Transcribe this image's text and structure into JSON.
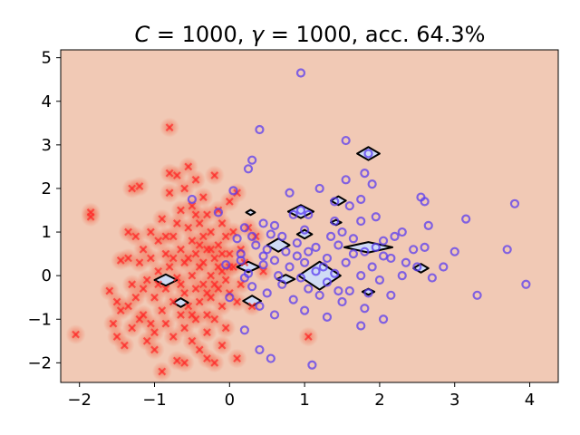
{
  "chart_data": {
    "type": "scatter",
    "title": "C = 1000, γ = 1000, acc. 64.3%",
    "title_parts": {
      "c_sym": "C",
      "c_val": " = 1000, ",
      "g_sym": "γ",
      "g_val": " = 1000, acc. 64.3%"
    },
    "xlim": [
      -2.25,
      4.38
    ],
    "ylim": [
      -2.45,
      5.18
    ],
    "xticks": [
      "−2",
      "−1",
      "0",
      "1",
      "2",
      "3",
      "4"
    ],
    "xtick_values": [
      -2,
      -1,
      0,
      1,
      2,
      3,
      4
    ],
    "yticks": [
      "−2",
      "−1",
      "0",
      "1",
      "2",
      "3",
      "4",
      "5"
    ],
    "ytick_values": [
      -2,
      -1,
      0,
      1,
      2,
      3,
      4,
      5
    ],
    "grid": false,
    "colors": {
      "background_region": "#f1c9b5",
      "red_region": "#f6a48c",
      "blue_region": "#cfdbf5",
      "cross": "#ff2a2a",
      "circle": "#5a3cf0",
      "boundary": "#000000"
    },
    "series": [
      {
        "marker": "x",
        "color": "#ff2a2a",
        "points": [
          [
            -2.05,
            -1.35
          ],
          [
            -1.85,
            1.45
          ],
          [
            -1.85,
            1.35
          ],
          [
            -1.6,
            -0.35
          ],
          [
            -1.55,
            -1.1
          ],
          [
            -1.5,
            -0.6
          ],
          [
            -1.5,
            -1.4
          ],
          [
            -1.45,
            0.35
          ],
          [
            -1.45,
            -0.8
          ],
          [
            -1.4,
            -1.6
          ],
          [
            -1.35,
            0.4
          ],
          [
            -1.35,
            1.0
          ],
          [
            -1.3,
            -0.2
          ],
          [
            -1.3,
            -1.2
          ],
          [
            -1.3,
            2.0
          ],
          [
            -1.25,
            -0.5
          ],
          [
            -1.2,
            0.3
          ],
          [
            -1.2,
            -1.0
          ],
          [
            -1.2,
            2.05
          ],
          [
            -1.15,
            0.6
          ],
          [
            -1.15,
            -0.9
          ],
          [
            -1.1,
            -0.1
          ],
          [
            -1.1,
            -1.5
          ],
          [
            -1.05,
            1.0
          ],
          [
            -1.05,
            0.4
          ],
          [
            -1.0,
            -0.5
          ],
          [
            -1.0,
            -1.3
          ],
          [
            -1.0,
            -1.7
          ],
          [
            -0.95,
            0.8
          ],
          [
            -0.95,
            0.1
          ],
          [
            -0.9,
            -0.8
          ],
          [
            -0.9,
            1.3
          ],
          [
            -0.9,
            -2.2
          ],
          [
            -0.85,
            -0.3
          ],
          [
            -0.85,
            0.5
          ],
          [
            -0.85,
            -1.1
          ],
          [
            -0.8,
            1.9
          ],
          [
            -0.8,
            3.4
          ],
          [
            -0.8,
            2.35
          ],
          [
            -0.8,
            0.2
          ],
          [
            -0.75,
            -0.6
          ],
          [
            -0.75,
            -1.4
          ],
          [
            -0.75,
            0.9
          ],
          [
            -0.7,
            -0.05
          ],
          [
            -0.7,
            2.3
          ],
          [
            -0.7,
            -1.95
          ],
          [
            -0.65,
            0.6
          ],
          [
            -0.65,
            -0.9
          ],
          [
            -0.65,
            1.5
          ],
          [
            -0.6,
            0.3
          ],
          [
            -0.6,
            -0.4
          ],
          [
            -0.6,
            2.0
          ],
          [
            -0.6,
            -1.2
          ],
          [
            -0.55,
            1.1
          ],
          [
            -0.55,
            -0.7
          ],
          [
            -0.55,
            2.5
          ],
          [
            -0.5,
            0.0
          ],
          [
            -0.5,
            0.8
          ],
          [
            -0.5,
            -1.5
          ],
          [
            -0.5,
            1.6
          ],
          [
            -0.45,
            -0.3
          ],
          [
            -0.45,
            0.5
          ],
          [
            -0.45,
            -1.0
          ],
          [
            -0.45,
            2.2
          ],
          [
            -0.4,
            1.2
          ],
          [
            -0.4,
            -0.6
          ],
          [
            -0.4,
            0.2
          ],
          [
            -0.4,
            -1.7
          ],
          [
            -0.35,
            0.9
          ],
          [
            -0.35,
            -0.2
          ],
          [
            -0.35,
            1.8
          ],
          [
            -0.3,
            -0.9
          ],
          [
            -0.3,
            0.6
          ],
          [
            -0.3,
            1.4
          ],
          [
            -0.3,
            -1.3
          ],
          [
            -0.25,
            0.0
          ],
          [
            -0.25,
            1.0
          ],
          [
            -0.25,
            -0.5
          ],
          [
            -0.2,
            2.3
          ],
          [
            -0.2,
            0.4
          ],
          [
            -0.2,
            -1.0
          ],
          [
            -0.15,
            1.5
          ],
          [
            -0.15,
            -0.3
          ],
          [
            -0.15,
            0.7
          ],
          [
            -0.1,
            -0.7
          ],
          [
            -0.1,
            1.2
          ],
          [
            -0.1,
            0.1
          ],
          [
            -0.05,
            0.9
          ],
          [
            -0.05,
            -0.1
          ],
          [
            -0.05,
            -1.2
          ],
          [
            0.0,
            0.5
          ],
          [
            0.0,
            1.7
          ],
          [
            0.0,
            -0.4
          ],
          [
            0.05,
            1.0
          ],
          [
            0.05,
            0.2
          ],
          [
            0.1,
            -0.6
          ],
          [
            0.1,
            1.9
          ],
          [
            0.15,
            0.6
          ],
          [
            0.15,
            -0.2
          ],
          [
            0.2,
            0.3
          ],
          [
            -1.35,
            -0.7
          ],
          [
            -1.25,
            0.9
          ],
          [
            -1.15,
            -0.3
          ],
          [
            -1.05,
            -1.1
          ],
          [
            -0.95,
            -0.2
          ],
          [
            -0.85,
            0.9
          ],
          [
            -0.75,
            0.4
          ],
          [
            -0.7,
            1.2
          ],
          [
            -0.65,
            -0.2
          ],
          [
            -0.55,
            0.4
          ],
          [
            -0.5,
            -0.9
          ],
          [
            -0.45,
            1.4
          ],
          [
            -0.4,
            0.7
          ],
          [
            -0.35,
            0.3
          ],
          [
            -0.3,
            -0.4
          ],
          [
            -0.25,
            0.6
          ],
          [
            -0.2,
            -0.2
          ],
          [
            -0.15,
            0.2
          ],
          [
            -0.1,
            0.5
          ],
          [
            0.0,
            0.2
          ],
          [
            -0.3,
            -1.9
          ],
          [
            -0.2,
            -2.0
          ],
          [
            -0.6,
            -2.0
          ],
          [
            0.1,
            -1.9
          ],
          [
            -0.1,
            -1.6
          ],
          [
            1.05,
            -1.4
          ],
          [
            0.35,
            0.9
          ],
          [
            0.45,
            0.1
          ],
          [
            0.3,
            -0.7
          ],
          [
            0.25,
            1.1
          ]
        ]
      },
      {
        "marker": "o",
        "color": "#5a3cf0",
        "points": [
          [
            0.95,
            4.65
          ],
          [
            0.4,
            3.35
          ],
          [
            1.55,
            3.1
          ],
          [
            1.85,
            2.8
          ],
          [
            0.3,
            2.65
          ],
          [
            0.25,
            2.45
          ],
          [
            1.8,
            2.35
          ],
          [
            1.55,
            2.2
          ],
          [
            1.9,
            2.1
          ],
          [
            0.8,
            1.9
          ],
          [
            1.2,
            2.0
          ],
          [
            -0.5,
            1.75
          ],
          [
            1.4,
            1.7
          ],
          [
            2.55,
            1.8
          ],
          [
            2.6,
            1.7
          ],
          [
            1.75,
            1.75
          ],
          [
            1.6,
            1.6
          ],
          [
            0.95,
            1.5
          ],
          [
            1.05,
            1.4
          ],
          [
            3.8,
            1.65
          ],
          [
            3.15,
            1.3
          ],
          [
            1.95,
            1.35
          ],
          [
            1.75,
            1.25
          ],
          [
            2.65,
            1.15
          ],
          [
            2.3,
            1.0
          ],
          [
            0.45,
            1.2
          ],
          [
            0.6,
            1.15
          ],
          [
            0.2,
            1.1
          ],
          [
            1.0,
            1.05
          ],
          [
            1.5,
            1.0
          ],
          [
            0.3,
            0.9
          ],
          [
            0.7,
            0.9
          ],
          [
            1.35,
            0.9
          ],
          [
            0.55,
            0.95
          ],
          [
            2.2,
            0.9
          ],
          [
            2.05,
            0.8
          ],
          [
            0.9,
            0.75
          ],
          [
            1.45,
            0.7
          ],
          [
            0.35,
            0.7
          ],
          [
            1.15,
            0.65
          ],
          [
            2.6,
            0.65
          ],
          [
            0.5,
            0.6
          ],
          [
            1.8,
            0.55
          ],
          [
            2.45,
            0.6
          ],
          [
            0.75,
            0.55
          ],
          [
            1.65,
            0.5
          ],
          [
            3.0,
            0.55
          ],
          [
            0.15,
            0.5
          ],
          [
            2.05,
            0.45
          ],
          [
            1.3,
            0.4
          ],
          [
            0.6,
            0.35
          ],
          [
            1.0,
            0.3
          ],
          [
            2.15,
            0.4
          ],
          [
            1.55,
            0.3
          ],
          [
            0.45,
            0.25
          ],
          [
            3.7,
            0.6
          ],
          [
            0.8,
            0.2
          ],
          [
            1.9,
            0.2
          ],
          [
            2.5,
            0.2
          ],
          [
            1.15,
            0.1
          ],
          [
            0.25,
            0.05
          ],
          [
            1.4,
            0.05
          ],
          [
            2.85,
            0.2
          ],
          [
            0.65,
            0.0
          ],
          [
            1.75,
            0.0
          ],
          [
            2.3,
            0.0
          ],
          [
            0.95,
            -0.05
          ],
          [
            1.3,
            -0.15
          ],
          [
            0.3,
            -0.25
          ],
          [
            1.05,
            -0.3
          ],
          [
            1.6,
            -0.35
          ],
          [
            0.5,
            -0.4
          ],
          [
            1.2,
            -0.45
          ],
          [
            1.85,
            -0.4
          ],
          [
            2.15,
            -0.45
          ],
          [
            3.3,
            -0.45
          ],
          [
            0.85,
            -0.55
          ],
          [
            1.5,
            -0.6
          ],
          [
            0.4,
            -0.7
          ],
          [
            1.8,
            -0.75
          ],
          [
            1.0,
            -0.8
          ],
          [
            3.95,
            -0.2
          ],
          [
            1.3,
            -0.95
          ],
          [
            0.6,
            -0.9
          ],
          [
            2.05,
            -1.0
          ],
          [
            1.75,
            -1.15
          ],
          [
            0.2,
            -1.25
          ],
          [
            0.4,
            -1.7
          ],
          [
            0.55,
            -1.9
          ],
          [
            1.1,
            -2.05
          ],
          [
            0.0,
            -0.5
          ],
          [
            0.1,
            0.85
          ],
          [
            0.05,
            1.95
          ],
          [
            -0.15,
            1.45
          ],
          [
            0.15,
            0.35
          ],
          [
            -0.05,
            0.25
          ],
          [
            0.2,
            -0.05
          ],
          [
            0.45,
            0.45
          ],
          [
            0.7,
            -0.2
          ],
          [
            1.25,
            0.2
          ],
          [
            1.05,
            0.55
          ],
          [
            0.85,
            1.4
          ],
          [
            1.4,
            1.25
          ],
          [
            1.65,
            0.85
          ],
          [
            1.95,
            0.65
          ],
          [
            2.35,
            0.3
          ],
          [
            2.7,
            -0.05
          ],
          [
            2.0,
            -0.1
          ],
          [
            1.45,
            -0.35
          ],
          [
            0.9,
            0.45
          ]
        ]
      }
    ],
    "decision_regions": {
      "blue_islands": [
        [
          0.95,
          1.47,
          0.17,
          0.15
        ],
        [
          0.65,
          0.7,
          0.15,
          0.15
        ],
        [
          1.45,
          1.72,
          0.1,
          0.1
        ],
        [
          1.85,
          2.8,
          0.15,
          0.15
        ],
        [
          1.0,
          0.95,
          0.1,
          0.1
        ],
        [
          1.2,
          0.0,
          0.28,
          0.32
        ],
        [
          1.85,
          0.65,
          0.32,
          0.12
        ],
        [
          2.55,
          0.17,
          0.1,
          0.1
        ],
        [
          1.85,
          -0.37,
          0.08,
          0.07
        ],
        [
          0.25,
          0.2,
          0.15,
          0.12
        ],
        [
          0.75,
          -0.08,
          0.12,
          0.1
        ],
        [
          0.3,
          -0.58,
          0.12,
          0.12
        ],
        [
          -0.65,
          -0.62,
          0.1,
          0.1
        ],
        [
          -0.85,
          -0.1,
          0.15,
          0.13
        ],
        [
          1.42,
          1.22,
          0.07,
          0.06
        ],
        [
          0.28,
          1.45,
          0.06,
          0.06
        ]
      ]
    }
  }
}
